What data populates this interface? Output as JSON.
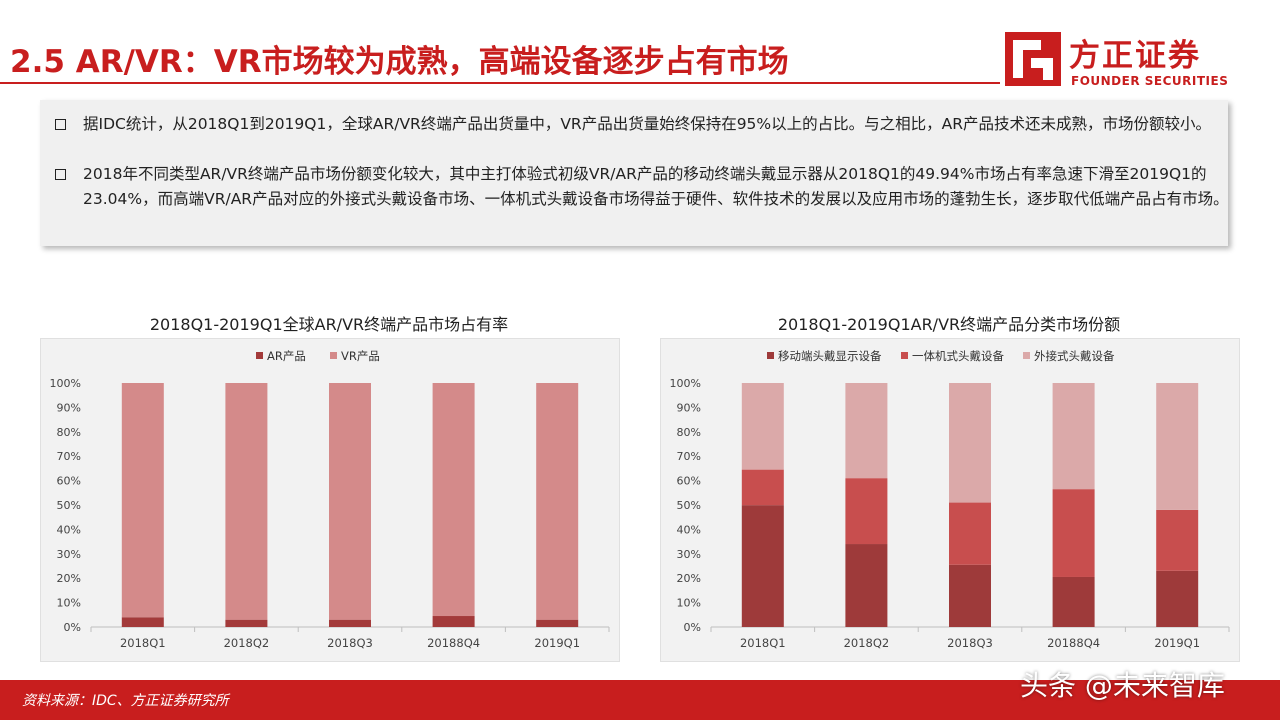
{
  "header": {
    "title": "2.5 AR/VR：VR市场较为成熟，高端设备逐步占有市场"
  },
  "logo": {
    "cn": "方正证券",
    "en": "FOUNDER SECURITIES"
  },
  "summary": {
    "bullets": [
      "据IDC统计，从2018Q1到2019Q1，全球AR/VR终端产品出货量中，VR产品出货量始终保持在95%以上的占比。与之相比，AR产品技术还未成熟，市场份额较小。",
      "2018年不同类型AR/VR终端产品市场份额变化较大，其中主打体验式初级VR/AR产品的移动终端头戴显示器从2018Q1的49.94%市场占有率急速下滑至2019Q1的23.04%，而高端VR/AR产品对应的外接式头戴设备市场、一体机式头戴设备市场得益于硬件、软件技术的发展以及应用市场的蓬勃生长，逐步取代低端产品占有市场。"
    ]
  },
  "colors": {
    "brand": "#c81e1e",
    "ar": "#a33a3a",
    "vr": "#d48a8a",
    "mobile": "#9e3a3a",
    "allinone": "#c84e4e",
    "external": "#dba9a9"
  },
  "chart_data": [
    {
      "type": "bar",
      "stacked": true,
      "title": "2018Q1-2019Q1全球AR/VR终端产品市场占有率",
      "categories": [
        "2018Q1",
        "2018Q2",
        "2018Q3",
        "20188Q4",
        "2019Q1"
      ],
      "series": [
        {
          "name": "AR产品",
          "values": [
            4,
            3,
            3,
            4.5,
            3
          ]
        },
        {
          "name": "VR产品",
          "values": [
            96,
            97,
            97,
            95.5,
            97
          ]
        }
      ],
      "ylim": [
        0,
        100
      ],
      "yticks": [
        "0%",
        "10%",
        "20%",
        "30%",
        "40%",
        "50%",
        "60%",
        "70%",
        "80%",
        "90%",
        "100%"
      ],
      "legend": "top-center",
      "grid": false
    },
    {
      "type": "bar",
      "stacked": true,
      "title": "2018Q1-2019Q1AR/VR终端产品分类市场份额",
      "categories": [
        "2018Q1",
        "2018Q2",
        "2018Q3",
        "20188Q4",
        "2019Q1"
      ],
      "series": [
        {
          "name": "移动端头戴显示设备",
          "values": [
            49.94,
            34,
            25.5,
            20.5,
            23.04
          ]
        },
        {
          "name": "一体机式头戴设备",
          "values": [
            14.56,
            27,
            25.5,
            36,
            24.96
          ]
        },
        {
          "name": "外接式头戴设备",
          "values": [
            35.5,
            39,
            49,
            43.5,
            52
          ]
        }
      ],
      "ylim": [
        0,
        100
      ],
      "yticks": [
        "0%",
        "10%",
        "20%",
        "30%",
        "40%",
        "50%",
        "60%",
        "70%",
        "80%",
        "90%",
        "100%"
      ],
      "legend": "top-center",
      "grid": false
    }
  ],
  "footer": {
    "source": "资料来源：IDC、方正证券研究所"
  },
  "watermark": "头条 @未来智库"
}
